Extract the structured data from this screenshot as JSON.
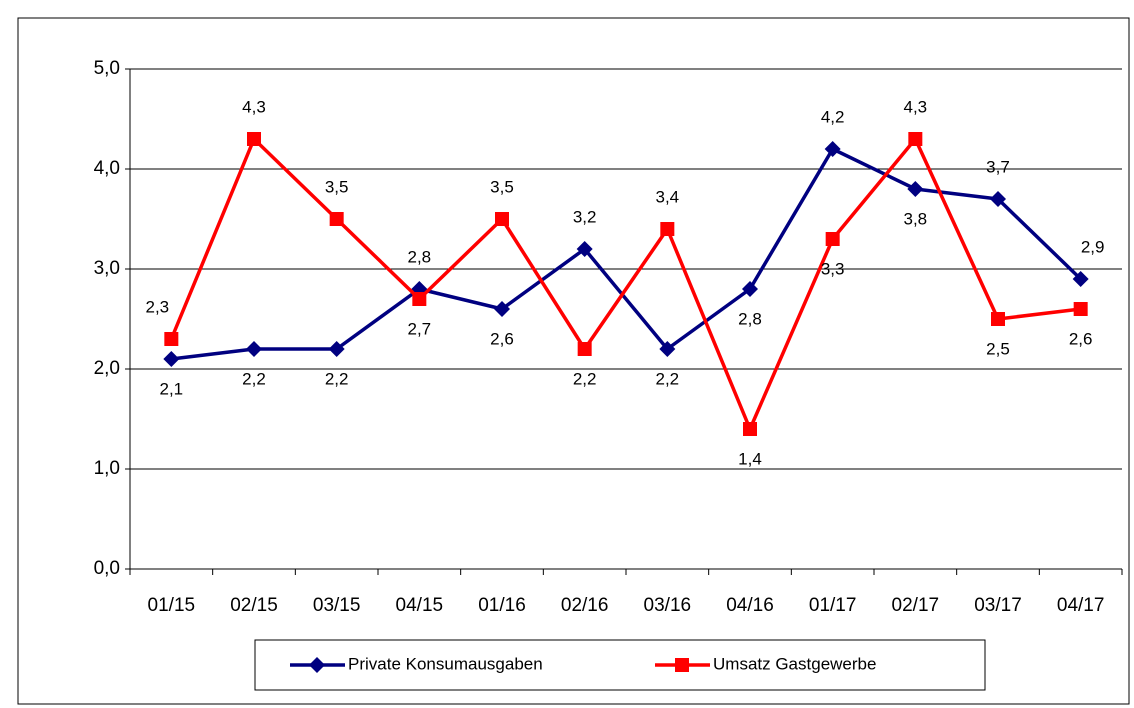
{
  "chart_data": {
    "type": "line",
    "categories": [
      "01/15",
      "02/15",
      "03/15",
      "04/15",
      "01/16",
      "02/16",
      "03/16",
      "04/16",
      "01/17",
      "02/17",
      "03/17",
      "04/17"
    ],
    "series": [
      {
        "name": "Private Konsumausgaben",
        "color": "#000080",
        "marker": "diamond",
        "values": [
          2.1,
          2.2,
          2.2,
          2.8,
          2.6,
          3.2,
          2.2,
          2.8,
          4.2,
          3.8,
          3.7,
          2.9
        ],
        "value_labels": [
          "2,1",
          "2,2",
          "2,2",
          "2,8",
          "2,6",
          "3,2",
          "2,2",
          "2,8",
          "4,2",
          "3,8",
          "3,7",
          "2,9"
        ]
      },
      {
        "name": "Umsatz Gastgewerbe",
        "color": "#ff0000",
        "marker": "square",
        "values": [
          2.3,
          4.3,
          3.5,
          2.7,
          3.5,
          2.2,
          3.4,
          1.4,
          3.3,
          4.3,
          2.5,
          2.6
        ],
        "value_labels": [
          "2,3",
          "4,3",
          "3,5",
          "2,7",
          "3,5",
          "2,2",
          "3,4",
          "1,4",
          "3,3",
          "4,3",
          "2,5",
          "2,6"
        ]
      }
    ],
    "ylim": [
      0,
      5
    ],
    "yticks": [
      {
        "value": 0,
        "label": "0,0"
      },
      {
        "value": 1,
        "label": "1,0"
      },
      {
        "value": 2,
        "label": "2,0"
      },
      {
        "value": 3,
        "label": "3,0"
      },
      {
        "value": 4,
        "label": "4,0"
      },
      {
        "value": 5,
        "label": "5,0"
      }
    ],
    "grid": true,
    "legend": "bottom"
  }
}
